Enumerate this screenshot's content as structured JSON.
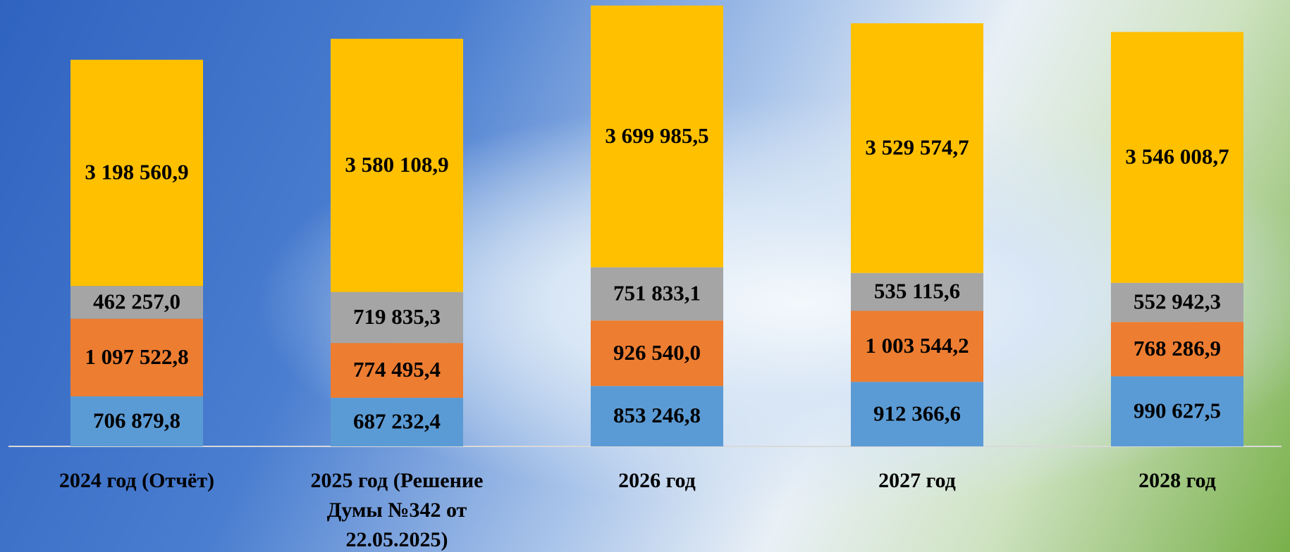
{
  "chart_data": {
    "type": "stacked_bar",
    "categories": [
      "2024 год (Отчёт)",
      "2025 год (Решение Думы №342 от 22.05.2025)",
      "2026 год",
      "2027 год",
      "2028 год"
    ],
    "series": [
      {
        "color": "#5b9bd5",
        "values": [
          706879.8,
          687232.4,
          853246.8,
          912366.6,
          990627.5
        ],
        "value_labels": [
          "706 879,8",
          "687 232,4",
          "853 246,8",
          "912 366,6",
          "990 627,5"
        ]
      },
      {
        "color": "#ed7d31",
        "values": [
          1097522.8,
          774495.4,
          926540.0,
          1003544.2,
          768286.9
        ],
        "value_labels": [
          "1 097 522,8",
          "774 495,4",
          "926 540,0",
          "1 003 544,2",
          "768 286,9"
        ]
      },
      {
        "color": "#a5a5a5",
        "values": [
          462257.0,
          719835.3,
          751833.1,
          535115.6,
          552942.3
        ],
        "value_labels": [
          "462 257,0",
          "719 835,3",
          "751 833,1",
          "535 115,6",
          "552 942,3"
        ]
      },
      {
        "color": "#ffc000",
        "values": [
          3198560.9,
          3580108.9,
          3699985.5,
          3529574.7,
          3546008.7
        ],
        "value_labels": [
          "3 198 560,9",
          "3 580 108,9",
          "3 699 985,5",
          "3 529 574,7",
          "3 546 008,7"
        ]
      }
    ],
    "ylim": [
      0,
      6250000
    ]
  }
}
